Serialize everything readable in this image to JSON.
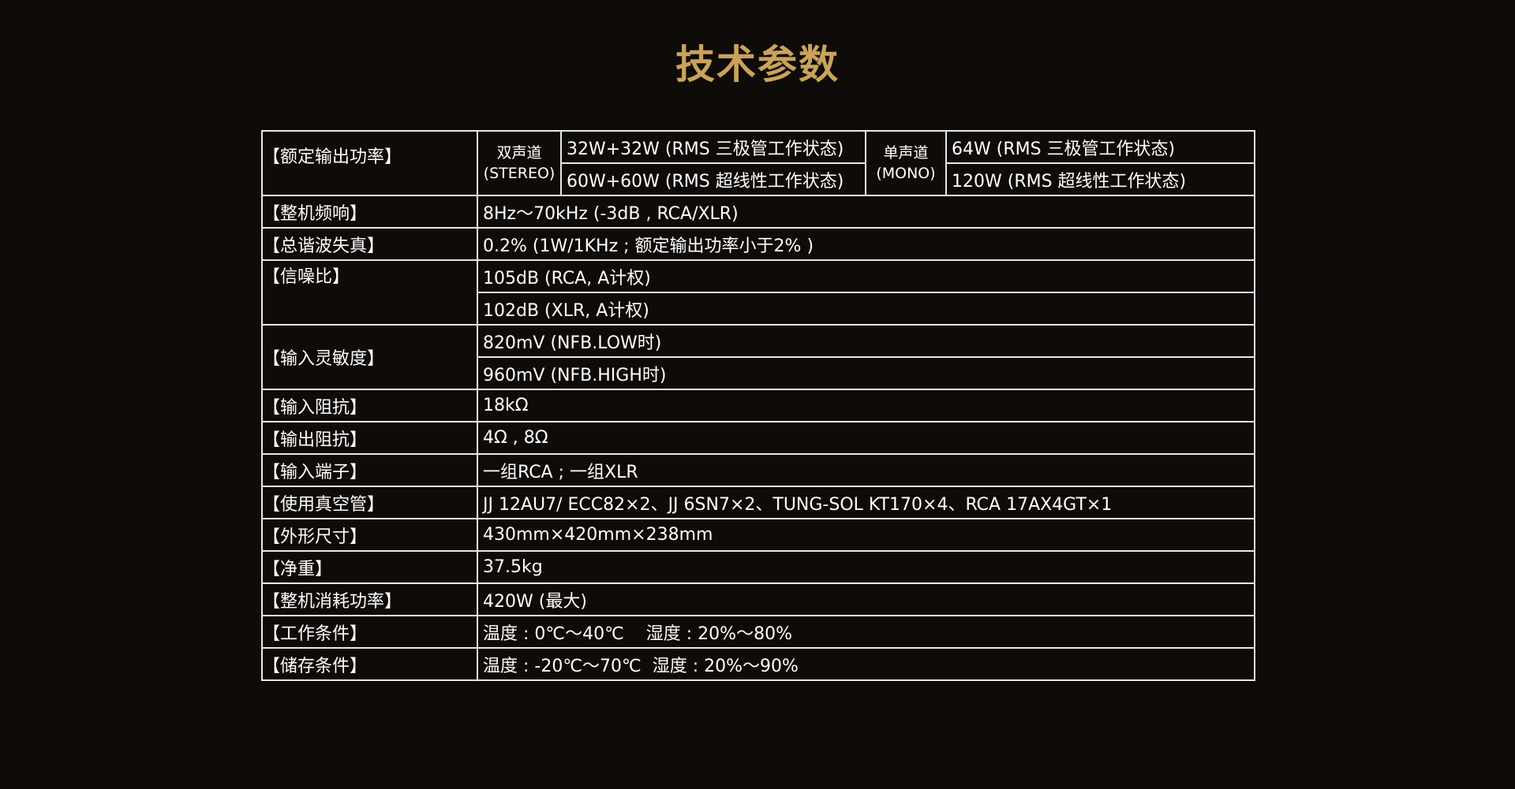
{
  "title": "技术参数",
  "power": {
    "label": "【额定输出功率】",
    "stereo_cn": "双声道",
    "stereo_en": "(STEREO)",
    "stereo_values": [
      "32W+32W (RMS 三极管工作状态)",
      "60W+60W (RMS 超线性工作状态)"
    ],
    "mono_cn": "单声道",
    "mono_en": "(MONO)",
    "mono_values": [
      "64W (RMS 三极管工作状态)",
      "120W (RMS 超线性工作状态)"
    ]
  },
  "rows": [
    {
      "label": "【整机频响】",
      "value": "8Hz～70kHz (-3dB , RCA/XLR)"
    },
    {
      "label": "【总谐波失真】",
      "value": "0.2% (1W/1KHz ; 额定输出功率小于2% )"
    },
    {
      "label": "【信噪比】",
      "values": [
        "105dB (RCA, A计权)",
        "102dB (XLR, A计权)"
      ]
    },
    {
      "label": "【输入灵敏度】",
      "values": [
        "820mV (NFB.LOW时)",
        "960mV (NFB.HIGH时)"
      ]
    },
    {
      "label": "【输入阻抗】",
      "value": "18kΩ"
    },
    {
      "label": "【输出阻抗】",
      "value": "4Ω , 8Ω"
    },
    {
      "label": "【输入端子】",
      "value": "一组RCA ; 一组XLR"
    },
    {
      "label": "【使用真空管】",
      "value": "JJ 12AU7/ ECC82×2、JJ 6SN7×2、TUNG-SOL KT170×4、RCA 17AX4GT×1"
    },
    {
      "label": "【外形尺寸】",
      "value": "430mm×420mm×238mm"
    },
    {
      "label": "【净重】",
      "value": "37.5kg"
    },
    {
      "label": "【整机消耗功率】",
      "value": "420W (最大)"
    },
    {
      "label": "【工作条件】",
      "value": "温度 : 0℃～40℃    湿度 : 20%～80%"
    },
    {
      "label": "【储存条件】",
      "value": "温度 : -20℃～70℃  湿度 : 20%～90%"
    }
  ]
}
